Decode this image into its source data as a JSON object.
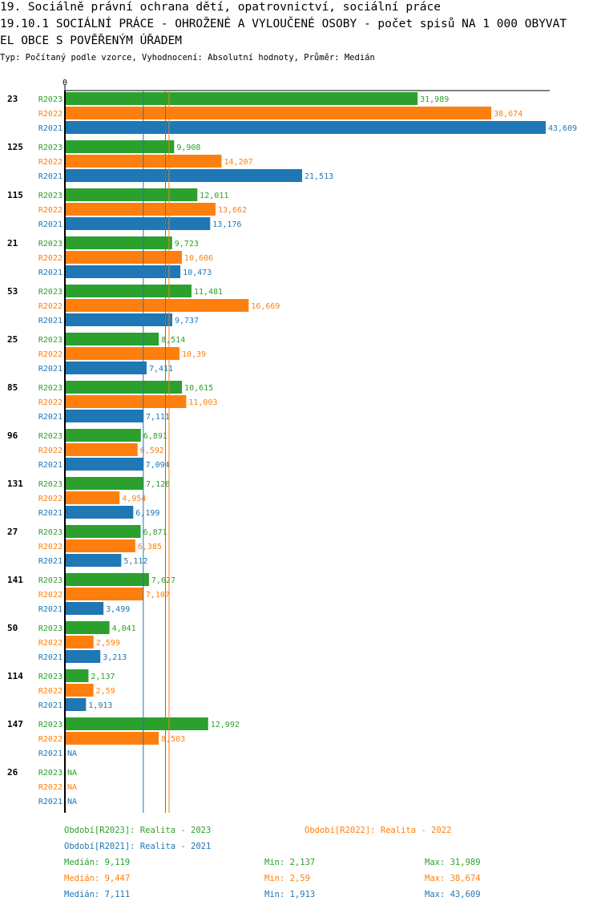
{
  "title_lines": [
    "19. Sociálně právní ochrana dětí, opatrovnictví, sociální práce",
    "19.10.1 SOCIÁLNÍ PRÁCE - OHROŽENÉ A VYLOUČENÉ OSOBY - počet spisů NA 1 000 OBYVAT",
    "EL OBCE S POVĚŘENÝM ÚŘADEM"
  ],
  "subtitle": "Typ: Počítaný podle vzorce, Vyhodnocení: Absolutní hodnoty, Průměr: Medián",
  "colors": {
    "R2023": "#2ca02c",
    "R2022": "#ff7f0e",
    "R2021": "#1f77b4"
  },
  "chart_data": {
    "type": "bar",
    "orientation": "horizontal",
    "axis_zero_label": "0",
    "xlim": [
      0,
      43.609
    ],
    "series_names": [
      "R2023",
      "R2022",
      "R2021"
    ],
    "categories": [
      {
        "id": "23",
        "values": [
          31.989,
          38.674,
          43.609
        ],
        "labels": [
          "31,989",
          "38,674",
          "43,609"
        ]
      },
      {
        "id": "125",
        "values": [
          9.908,
          14.207,
          21.513
        ],
        "labels": [
          "9,908",
          "14,207",
          "21,513"
        ]
      },
      {
        "id": "115",
        "values": [
          12.011,
          13.662,
          13.176
        ],
        "labels": [
          "12,011",
          "13,662",
          "13,176"
        ]
      },
      {
        "id": "21",
        "values": [
          9.723,
          10.606,
          10.473
        ],
        "labels": [
          "9,723",
          "10,606",
          "10,473"
        ]
      },
      {
        "id": "53",
        "values": [
          11.481,
          16.669,
          9.737
        ],
        "labels": [
          "11,481",
          "16,669",
          "9,737"
        ]
      },
      {
        "id": "25",
        "values": [
          8.514,
          10.39,
          7.411
        ],
        "labels": [
          "8,514",
          "10,39",
          "7,411"
        ]
      },
      {
        "id": "85",
        "values": [
          10.615,
          11.003,
          7.111
        ],
        "labels": [
          "10,615",
          "11,003",
          "7,111"
        ]
      },
      {
        "id": "96",
        "values": [
          6.891,
          6.592,
          7.094
        ],
        "labels": [
          "6,891",
          "6,592",
          "7,094"
        ]
      },
      {
        "id": "131",
        "values": [
          7.128,
          4.954,
          6.199
        ],
        "labels": [
          "7,128",
          "4,954",
          "6,199"
        ]
      },
      {
        "id": "27",
        "values": [
          6.871,
          6.385,
          5.112
        ],
        "labels": [
          "6,871",
          "6,385",
          "5,112"
        ]
      },
      {
        "id": "141",
        "values": [
          7.627,
          7.107,
          3.499
        ],
        "labels": [
          "7,627",
          "7,107",
          "3,499"
        ]
      },
      {
        "id": "50",
        "values": [
          4.041,
          2.599,
          3.213
        ],
        "labels": [
          "4,041",
          "2,599",
          "3,213"
        ]
      },
      {
        "id": "114",
        "values": [
          2.137,
          2.59,
          1.913
        ],
        "labels": [
          "2,137",
          "2,59",
          "1,913"
        ]
      },
      {
        "id": "147",
        "values": [
          12.992,
          8.503,
          null
        ],
        "labels": [
          "12,992",
          "8,503",
          "NA"
        ]
      },
      {
        "id": "26",
        "values": [
          null,
          null,
          null
        ],
        "labels": [
          "NA",
          "NA",
          "NA"
        ]
      }
    ],
    "median_lines": [
      {
        "series": "R2023",
        "value": 9.119
      },
      {
        "series": "R2022",
        "value": 9.447
      },
      {
        "series": "R2021",
        "value": 7.111
      }
    ]
  },
  "legend": {
    "r2023": "Období[R2023]: Realita - 2023",
    "r2022": "Období[R2022]: Realita - 2022",
    "r2021": "Období[R2021]: Realita - 2021"
  },
  "stats": [
    {
      "median": "Medián: 9,119",
      "min": "Min: 2,137",
      "max": "Max: 31,989"
    },
    {
      "median": "Medián: 9,447",
      "min": "Min: 2,59",
      "max": "Max: 38,674"
    },
    {
      "median": "Medián: 7,111",
      "min": "Min: 1,913",
      "max": "Max: 43,609"
    }
  ]
}
